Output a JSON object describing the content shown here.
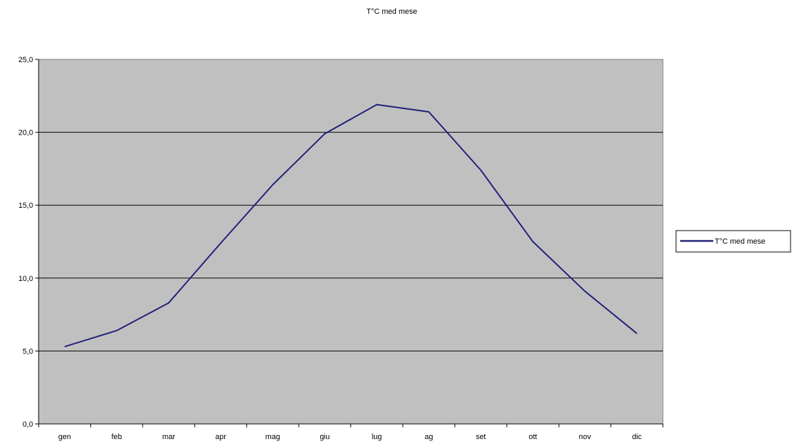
{
  "chart_data": {
    "type": "line",
    "title": "T°C med mese",
    "categories": [
      "gen",
      "feb",
      "mar",
      "apr",
      "mag",
      "giu",
      "lug",
      "ag",
      "set",
      "ott",
      "nov",
      "dic"
    ],
    "series": [
      {
        "name": "T°C med mese",
        "values": [
          5.3,
          6.4,
          8.3,
          12.4,
          16.4,
          19.9,
          21.9,
          21.4,
          17.4,
          12.5,
          9.1,
          6.2
        ],
        "color": "#1f1f7a"
      }
    ],
    "xlabel": "",
    "ylabel": "",
    "ylim": [
      0,
      25
    ],
    "yticks": [
      "0,0",
      "5,0",
      "10,0",
      "15,0",
      "20,0",
      "25,0"
    ],
    "grid": true,
    "legend_position": "right",
    "plot_background": "#c0c0c0",
    "gridline_color": "#000000"
  }
}
